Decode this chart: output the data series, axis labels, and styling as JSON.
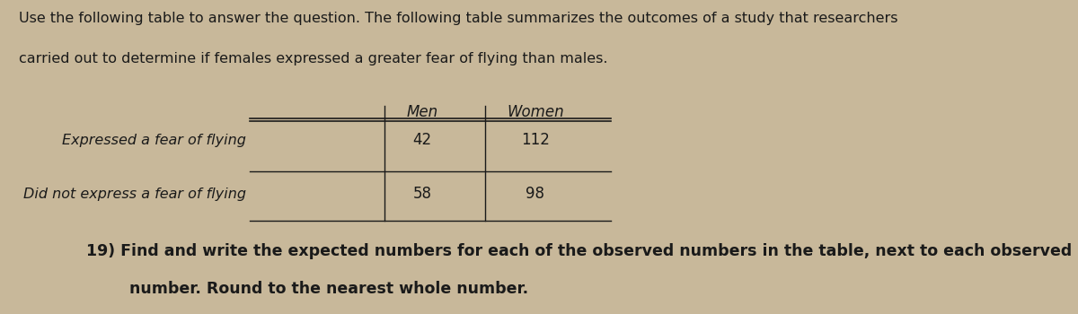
{
  "background_color": "#c8b89a",
  "intro_text_line1": "Use the following table to answer the question. The following table summarizes the outcomes of a study that researchers",
  "intro_text_line2": "carried out to determine if females expressed a greater fear of flying than males.",
  "col_headers": [
    "Men",
    "Women"
  ],
  "row_labels": [
    "Expressed a fear of flying",
    "Did not express a fear of flying"
  ],
  "data": [
    [
      42,
      112
    ],
    [
      58,
      98
    ]
  ],
  "question_line1": "19) Find and write the expected numbers for each of the observed numbers in the table, next to each observed",
  "question_line2": "        number. Round to the nearest whole number.",
  "intro_fontsize": 11.5,
  "table_fontsize": 12,
  "question_fontsize": 12.5,
  "text_color": "#1a1a1a"
}
